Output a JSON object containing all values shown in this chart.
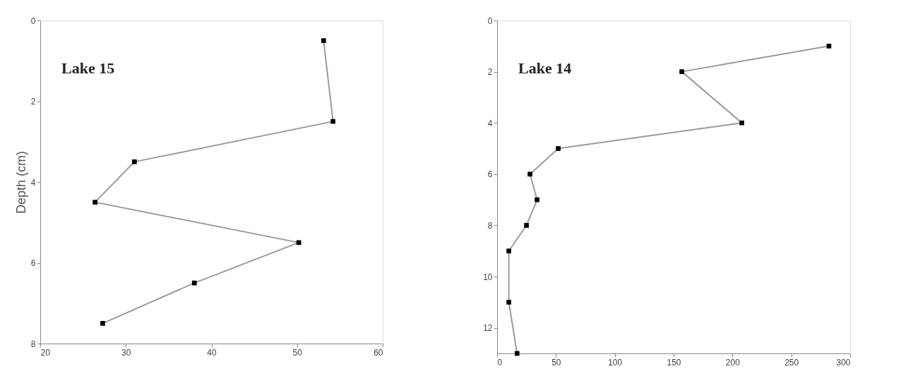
{
  "chart_data": [
    {
      "type": "line",
      "ylabel": "Depth (cm)",
      "annotations": [
        "Lake 15"
      ],
      "marker": "square",
      "grid": false,
      "x": [
        53.1,
        54.2,
        31.0,
        26.4,
        50.2,
        38.0,
        27.3
      ],
      "series": [
        {
          "color": "#000000",
          "values": [
            0.5,
            2.5,
            3.5,
            4.5,
            5.5,
            6.5,
            7.5
          ]
        }
      ],
      "xlim": [
        20,
        60
      ],
      "xticks": [
        20,
        30,
        40,
        50,
        60
      ],
      "ylim": [
        8,
        0
      ],
      "yticks": [
        0,
        2,
        4,
        6,
        8
      ]
    },
    {
      "type": "line",
      "annotations": [
        "Lake 14"
      ],
      "marker": "square",
      "grid": false,
      "x": [
        282,
        157,
        208,
        52,
        28,
        34,
        25,
        10,
        10,
        17
      ],
      "series": [
        {
          "color": "#000000",
          "values": [
            1,
            2,
            4,
            5,
            6,
            7,
            8,
            9,
            11,
            13
          ]
        }
      ],
      "xlim": [
        0,
        300
      ],
      "xticks": [
        0,
        50,
        100,
        150,
        200,
        250,
        300
      ],
      "ylim": [
        13,
        0
      ],
      "yticks": [
        0,
        2,
        4,
        6,
        8,
        10,
        12
      ]
    }
  ]
}
